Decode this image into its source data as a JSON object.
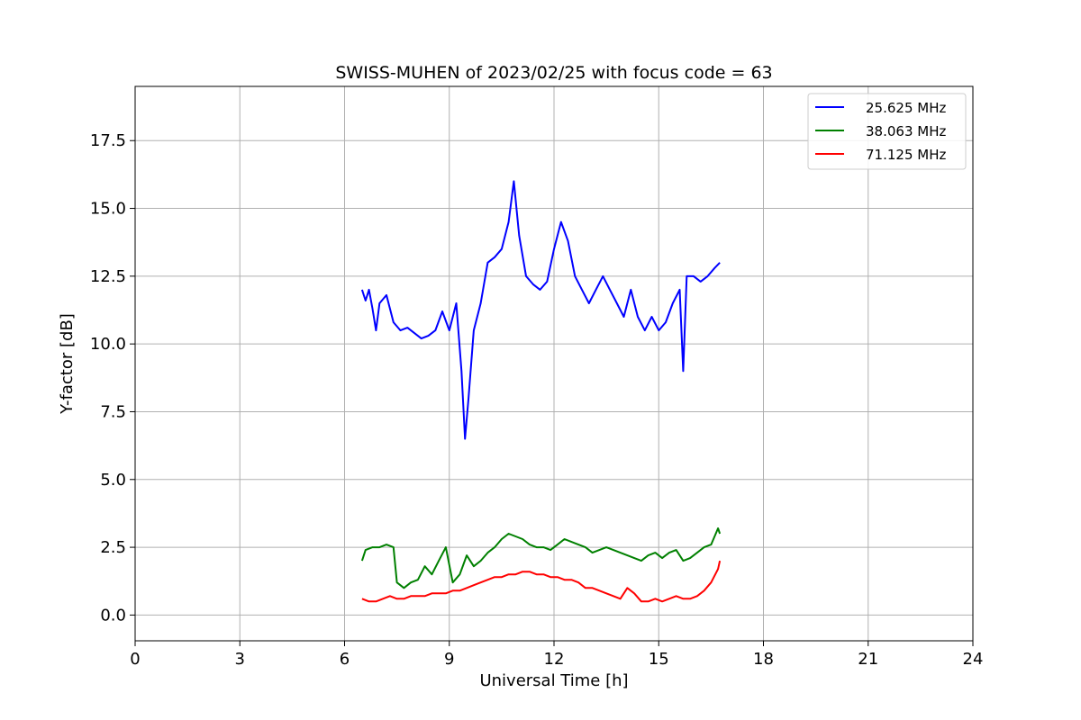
{
  "chart_data": {
    "type": "line",
    "title": "SWISS-MUHEN of 2023/02/25 with focus code = 63",
    "xlabel": "Universal Time [h]",
    "ylabel": "Y-factor [dB]",
    "xlim": [
      0,
      24
    ],
    "ylim": [
      -0.95,
      19.5
    ],
    "xticks": [
      0,
      3,
      6,
      9,
      12,
      15,
      18,
      21,
      24
    ],
    "xtick_labels": [
      "0",
      "3",
      "6",
      "9",
      "12",
      "15",
      "18",
      "21",
      "24"
    ],
    "yticks": [
      0,
      2.5,
      5,
      7.5,
      10,
      12.5,
      15,
      17.5
    ],
    "ytick_labels": [
      "0.0",
      "2.5",
      "5.0",
      "7.5",
      "10.0",
      "12.5",
      "15.0",
      "17.5"
    ],
    "grid": true,
    "legend_position": "top-right",
    "series": [
      {
        "name": "25.625 MHz",
        "color": "#0000ff",
        "x": [
          6.5,
          6.6,
          6.7,
          6.8,
          6.9,
          7.0,
          7.2,
          7.4,
          7.6,
          7.8,
          8.0,
          8.2,
          8.4,
          8.6,
          8.8,
          9.0,
          9.2,
          9.35,
          9.45,
          9.55,
          9.7,
          9.9,
          10.1,
          10.3,
          10.5,
          10.7,
          10.85,
          11.0,
          11.2,
          11.4,
          11.6,
          11.8,
          12.0,
          12.2,
          12.4,
          12.6,
          12.8,
          13.0,
          13.2,
          13.4,
          13.6,
          13.8,
          14.0,
          14.2,
          14.4,
          14.6,
          14.8,
          15.0,
          15.2,
          15.4,
          15.6,
          15.7,
          15.8,
          16.0,
          16.2,
          16.4,
          16.6,
          16.75
        ],
        "y": [
          12.0,
          11.6,
          12.0,
          11.3,
          10.5,
          11.5,
          11.8,
          10.8,
          10.5,
          10.6,
          10.4,
          10.2,
          10.3,
          10.5,
          11.2,
          10.5,
          11.5,
          9.0,
          6.5,
          8.0,
          10.5,
          11.5,
          13.0,
          13.2,
          13.5,
          14.5,
          16.0,
          14.0,
          12.5,
          12.2,
          12.0,
          12.3,
          13.5,
          14.5,
          13.8,
          12.5,
          12.0,
          11.5,
          12.0,
          12.5,
          12.0,
          11.5,
          11.0,
          12.0,
          11.0,
          10.5,
          11.0,
          10.5,
          10.8,
          11.5,
          12.0,
          9.0,
          12.5,
          12.5,
          12.3,
          12.5,
          12.8,
          13.0
        ]
      },
      {
        "name": "38.063 MHz",
        "color": "#008000",
        "x": [
          6.5,
          6.6,
          6.8,
          7.0,
          7.2,
          7.4,
          7.5,
          7.7,
          7.9,
          8.1,
          8.3,
          8.5,
          8.7,
          8.9,
          9.1,
          9.3,
          9.5,
          9.7,
          9.9,
          10.1,
          10.3,
          10.5,
          10.7,
          10.9,
          11.1,
          11.3,
          11.5,
          11.7,
          11.9,
          12.1,
          12.3,
          12.5,
          12.7,
          12.9,
          13.1,
          13.3,
          13.5,
          13.7,
          13.9,
          14.1,
          14.3,
          14.5,
          14.7,
          14.9,
          15.1,
          15.3,
          15.5,
          15.7,
          15.9,
          16.1,
          16.3,
          16.5,
          16.7,
          16.75
        ],
        "y": [
          2.0,
          2.4,
          2.5,
          2.5,
          2.6,
          2.5,
          1.2,
          1.0,
          1.2,
          1.3,
          1.8,
          1.5,
          2.0,
          2.5,
          1.2,
          1.5,
          2.2,
          1.8,
          2.0,
          2.3,
          2.5,
          2.8,
          3.0,
          2.9,
          2.8,
          2.6,
          2.5,
          2.5,
          2.4,
          2.6,
          2.8,
          2.7,
          2.6,
          2.5,
          2.3,
          2.4,
          2.5,
          2.4,
          2.3,
          2.2,
          2.1,
          2.0,
          2.2,
          2.3,
          2.1,
          2.3,
          2.4,
          2.0,
          2.1,
          2.3,
          2.5,
          2.6,
          3.2,
          3.0
        ]
      },
      {
        "name": "71.125 MHz",
        "color": "#ff0000",
        "x": [
          6.5,
          6.7,
          6.9,
          7.1,
          7.3,
          7.5,
          7.7,
          7.9,
          8.1,
          8.3,
          8.5,
          8.7,
          8.9,
          9.1,
          9.3,
          9.5,
          9.7,
          9.9,
          10.1,
          10.3,
          10.5,
          10.7,
          10.9,
          11.1,
          11.3,
          11.5,
          11.7,
          11.9,
          12.1,
          12.3,
          12.5,
          12.7,
          12.9,
          13.1,
          13.3,
          13.5,
          13.7,
          13.9,
          14.1,
          14.3,
          14.5,
          14.7,
          14.9,
          15.1,
          15.3,
          15.5,
          15.7,
          15.9,
          16.1,
          16.3,
          16.5,
          16.7,
          16.75
        ],
        "y": [
          0.6,
          0.5,
          0.5,
          0.6,
          0.7,
          0.6,
          0.6,
          0.7,
          0.7,
          0.7,
          0.8,
          0.8,
          0.8,
          0.9,
          0.9,
          1.0,
          1.1,
          1.2,
          1.3,
          1.4,
          1.4,
          1.5,
          1.5,
          1.6,
          1.6,
          1.5,
          1.5,
          1.4,
          1.4,
          1.3,
          1.3,
          1.2,
          1.0,
          1.0,
          0.9,
          0.8,
          0.7,
          0.6,
          1.0,
          0.8,
          0.5,
          0.5,
          0.6,
          0.5,
          0.6,
          0.7,
          0.6,
          0.6,
          0.7,
          0.9,
          1.2,
          1.7,
          2.0
        ]
      }
    ]
  }
}
